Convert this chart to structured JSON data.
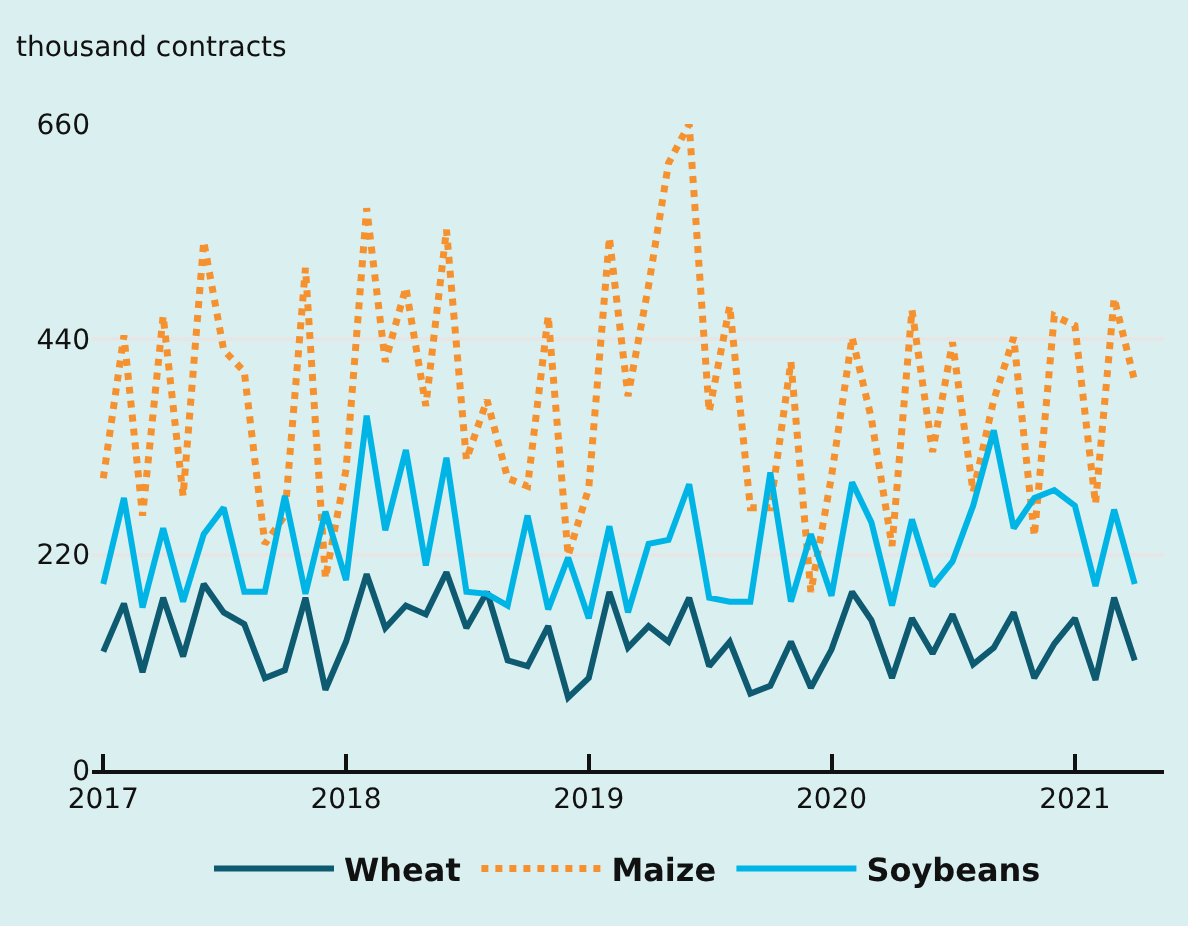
{
  "chart_data": {
    "type": "line",
    "ylabel": "thousand contracts",
    "x": [
      "2017-01",
      "2017-02",
      "2017-03",
      "2017-04",
      "2017-05",
      "2017-06",
      "2017-07",
      "2017-08",
      "2017-09",
      "2017-10",
      "2017-11",
      "2017-12",
      "2018-01",
      "2018-02",
      "2018-03",
      "2018-04",
      "2018-05",
      "2018-06",
      "2018-07",
      "2018-08",
      "2018-09",
      "2018-10",
      "2018-11",
      "2018-12",
      "2019-01",
      "2019-02",
      "2019-03",
      "2019-04",
      "2019-05",
      "2019-06",
      "2019-07",
      "2019-08",
      "2019-09",
      "2019-10",
      "2019-11",
      "2019-12",
      "2020-01",
      "2020-02",
      "2020-03",
      "2020-04",
      "2020-05",
      "2020-06",
      "2020-07",
      "2020-08",
      "2020-09",
      "2020-10",
      "2020-11",
      "2020-12",
      "2021-01",
      "2021-02",
      "2021-03",
      "2021-04"
    ],
    "series": [
      {
        "name": "Wheat",
        "color": "#0e5a70",
        "line_style": "solid",
        "values": [
          121,
          170,
          100,
          176,
          116,
          190,
          161,
          149,
          94,
          102,
          176,
          82,
          131,
          200,
          145,
          168,
          159,
          202,
          145,
          182,
          112,
          106,
          147,
          74,
          94,
          182,
          125,
          147,
          131,
          176,
          106,
          131,
          78,
          86,
          131,
          84,
          123,
          182,
          153,
          94,
          155,
          119,
          159,
          108,
          125,
          161,
          94,
          129,
          155,
          92,
          176,
          112
        ]
      },
      {
        "name": "Maize",
        "color": "#f5922f",
        "line_style": "dotted",
        "values": [
          298,
          444,
          260,
          464,
          280,
          540,
          429,
          407,
          231,
          260,
          513,
          196,
          307,
          574,
          417,
          493,
          372,
          552,
          317,
          378,
          298,
          290,
          464,
          219,
          288,
          544,
          382,
          495,
          620,
          660,
          366,
          474,
          268,
          268,
          417,
          182,
          300,
          442,
          359,
          229,
          470,
          325,
          437,
          284,
          378,
          442,
          239,
          464,
          454,
          272,
          482,
          397
        ]
      },
      {
        "name": "Soybeans",
        "color": "#00b5e6",
        "line_style": "solid",
        "values": [
          190,
          278,
          166,
          247,
          172,
          241,
          268,
          182,
          182,
          280,
          180,
          264,
          194,
          362,
          245,
          327,
          209,
          319,
          182,
          180,
          168,
          260,
          164,
          217,
          155,
          249,
          161,
          231,
          235,
          292,
          176,
          172,
          172,
          304,
          172,
          241,
          178,
          294,
          253,
          168,
          256,
          188,
          213,
          270,
          347,
          247,
          278,
          286,
          270,
          188,
          266,
          190
        ]
      }
    ],
    "xlim": [
      "2016-12-15",
      "2021-05-15"
    ],
    "xticks": [
      {
        "value": "2017-01-01",
        "label": "2017"
      },
      {
        "value": "2018-01-01",
        "label": "2018"
      },
      {
        "value": "2019-01-01",
        "label": "2019"
      },
      {
        "value": "2020-01-01",
        "label": "2020"
      },
      {
        "value": "2021-01-01",
        "label": "2021"
      }
    ],
    "ylim": [
      0,
      660
    ],
    "yticks": [
      0,
      220,
      440,
      660
    ],
    "grid": "y",
    "legend": "bottom",
    "marker": "none"
  }
}
